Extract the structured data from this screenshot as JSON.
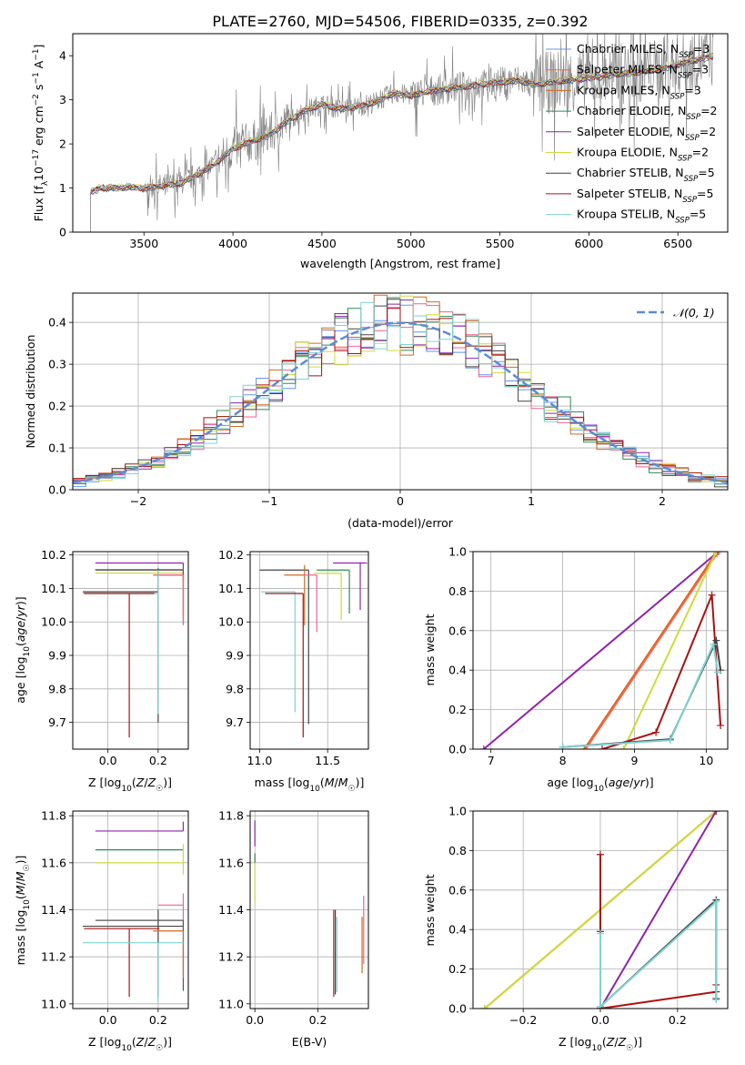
{
  "figure_title": "PLATE=2760, MJD=54506, FIBERID=0335, z=0.392",
  "colors": {
    "chabrier_miles": "#6495ed",
    "salpeter_miles": "#ff6347",
    "kroupa_miles": "#d2691e",
    "chabrier_elodie": "#2e8b57",
    "salpeter_elodie": "#8e24aa",
    "kroupa_elodie": "#cddc39",
    "chabrier_stelib": "#444444",
    "salpeter_stelib": "#aa1111",
    "kroupa_stelib": "#7fd3d3",
    "data": "#808080",
    "normal": "#5b8bd8",
    "pink": "#f06292",
    "dark": "#555555"
  },
  "chart_data": [
    {
      "id": "spectrum",
      "type": "line",
      "xlabel": "wavelength [Angstrom, rest frame]",
      "ylabel": "Flux [f_λ 10^-17 erg cm^-2 s^-1 A^-1]",
      "xlim": [
        3100,
        6780
      ],
      "ylim": [
        0,
        4.5
      ],
      "xticks": [
        3500,
        4000,
        4500,
        5000,
        5500,
        6000,
        6500
      ],
      "yticks": [
        0,
        1,
        2,
        3,
        4
      ],
      "legend_position": "top-right",
      "legend": [
        {
          "label": "Chabrier MILES, N",
          "sub": "SSP",
          "tail": "=3",
          "color_key": "chabrier_miles"
        },
        {
          "label": "Salpeter MILES, N",
          "sub": "SSP",
          "tail": "=3",
          "color_key": "salpeter_miles"
        },
        {
          "label": "Kroupa MILES, N",
          "sub": "SSP",
          "tail": "=3",
          "color_key": "kroupa_miles"
        },
        {
          "label": "Chabrier ELODIE, N",
          "sub": "SSP",
          "tail": "=2",
          "color_key": "chabrier_elodie"
        },
        {
          "label": "Salpeter ELODIE, N",
          "sub": "SSP",
          "tail": "=2",
          "color_key": "salpeter_elodie"
        },
        {
          "label": "Kroupa ELODIE, N",
          "sub": "SSP",
          "tail": "=2",
          "color_key": "kroupa_elodie"
        },
        {
          "label": "Chabrier STELIB, N",
          "sub": "SSP",
          "tail": "=5",
          "color_key": "chabrier_stelib"
        },
        {
          "label": "Salpeter STELIB, N",
          "sub": "SSP",
          "tail": "=5",
          "color_key": "salpeter_stelib"
        },
        {
          "label": "Kroupa STELIB, N",
          "sub": "SSP",
          "tail": "=5",
          "color_key": "kroupa_stelib"
        }
      ],
      "continuum": {
        "x": [
          3200,
          3250,
          3300,
          3400,
          3500,
          3600,
          3700,
          3800,
          3900,
          4000,
          4100,
          4200,
          4300,
          4400,
          4500,
          4600,
          4700,
          4800,
          4900,
          5000,
          5100,
          5200,
          5300,
          5400,
          5500,
          5600,
          5700,
          5800,
          5900,
          6000,
          6100,
          6200,
          6300,
          6400,
          6500,
          6600,
          6700
        ],
        "y": [
          0.9,
          1.0,
          1.0,
          1.02,
          1.0,
          1.05,
          1.1,
          1.3,
          1.55,
          1.9,
          2.05,
          2.2,
          2.5,
          2.75,
          2.9,
          2.8,
          2.85,
          2.95,
          3.15,
          3.1,
          3.2,
          3.25,
          3.3,
          3.35,
          3.4,
          3.45,
          3.35,
          3.4,
          3.45,
          3.5,
          3.55,
          3.6,
          3.65,
          3.7,
          3.8,
          3.9,
          4.0
        ]
      }
    },
    {
      "id": "residuals",
      "type": "line",
      "xlabel": "(data-model)/error",
      "ylabel": "Normed distribution",
      "xlim": [
        -2.5,
        2.5
      ],
      "ylim": [
        0,
        0.47
      ],
      "xticks": [
        -2,
        -1,
        0,
        1,
        2
      ],
      "yticks": [
        0.0,
        0.1,
        0.2,
        0.3,
        0.4
      ],
      "legend_position": "top-right",
      "legend": [
        {
          "label": "𝒩(0, 1)",
          "color_key": "normal"
        }
      ],
      "histogram_bin_width": 0.1
    },
    {
      "id": "age_vs_Z",
      "type": "scatter",
      "xlabel": "Z [log10(Z/Z☉)]",
      "ylabel": "age  [log10(age/yr)]",
      "xlim": [
        -0.14,
        0.32
      ],
      "ylim": [
        9.62,
        10.21
      ],
      "xticks": [
        0.0,
        0.2
      ],
      "yticks": [
        9.7,
        9.8,
        9.9,
        10.0,
        10.1,
        10.2
      ],
      "points": [
        {
          "x": 0.3,
          "y": 10.176,
          "xerr": [
            0.35,
            0.0
          ],
          "yerr": [
            0.02,
            0.0
          ],
          "color_key": "salpeter_elodie"
        },
        {
          "x": 0.3,
          "y": 10.156,
          "xerr": [
            0.35,
            0.0
          ],
          "yerr": [
            0.03,
            0.0
          ],
          "color_key": "chabrier_elodie"
        },
        {
          "x": 0.3,
          "y": 10.146,
          "xerr": [
            0.35,
            0.0
          ],
          "yerr": [
            0.03,
            0.0
          ],
          "color_key": "kroupa_elodie"
        },
        {
          "x": 0.3,
          "y": 10.155,
          "xerr": [
            0.35,
            0.0
          ],
          "yerr": [
            0.16,
            0.0
          ],
          "color_key": "dark"
        },
        {
          "x": 0.3,
          "y": 10.14,
          "xerr": [
            0.12,
            0.0
          ],
          "yerr": [
            0.12,
            0.0
          ],
          "color_key": "kroupa_miles"
        },
        {
          "x": 0.3,
          "y": 10.14,
          "xerr": [
            0.1,
            0.0
          ],
          "yerr": [
            0.15,
            0.0
          ],
          "color_key": "pink"
        },
        {
          "x": 0.2,
          "y": 10.09,
          "xerr": [
            0.3,
            0.0
          ],
          "yerr": [
            0.39,
            0.07
          ],
          "color_key": "chabrier_stelib"
        },
        {
          "x": 0.2,
          "y": 10.085,
          "xerr": [
            0.3,
            0.0
          ],
          "yerr": [
            0.36,
            0.07
          ],
          "color_key": "kroupa_stelib"
        },
        {
          "x": 0.085,
          "y": 10.085,
          "xerr": [
            0.18,
            0.1
          ],
          "yerr": [
            0.43,
            0.0
          ],
          "color_key": "salpeter_stelib"
        }
      ]
    },
    {
      "id": "age_vs_mass",
      "type": "scatter",
      "xlabel": "mass [log10(M/M☉)]",
      "ylabel": "",
      "xlim": [
        10.93,
        11.8
      ],
      "ylim": [
        9.62,
        10.21
      ],
      "xticks": [
        11.0,
        11.5
      ],
      "yticks": [
        9.7,
        9.8,
        9.9,
        10.0,
        10.1,
        10.2
      ],
      "points": [
        {
          "x": 11.74,
          "y": 10.176,
          "xerr": [
            0.2,
            0.05
          ],
          "yerr": [
            0.14,
            0.0
          ],
          "color_key": "salpeter_elodie"
        },
        {
          "x": 11.66,
          "y": 10.155,
          "xerr": [
            0.24,
            0.0
          ],
          "yerr": [
            0.13,
            0.0
          ],
          "color_key": "chabrier_elodie"
        },
        {
          "x": 11.6,
          "y": 10.145,
          "xerr": [
            0.2,
            0.0
          ],
          "yerr": [
            0.14,
            0.0
          ],
          "color_key": "kroupa_elodie"
        },
        {
          "x": 11.36,
          "y": 10.155,
          "xerr": [
            0.36,
            0.0
          ],
          "yerr": [
            0.46,
            0.0
          ],
          "color_key": "chabrier_stelib"
        },
        {
          "x": 11.33,
          "y": 10.14,
          "xerr": [
            0.15,
            0.0
          ],
          "yerr": [
            0.15,
            0.03
          ],
          "color_key": "kroupa_miles"
        },
        {
          "x": 11.42,
          "y": 10.14,
          "xerr": [
            0.1,
            0.0
          ],
          "yerr": [
            0.17,
            0.0
          ],
          "color_key": "pink"
        },
        {
          "x": 11.26,
          "y": 10.09,
          "xerr": [
            0.25,
            0.0
          ],
          "yerr": [
            0.36,
            0.0
          ],
          "color_key": "kroupa_stelib"
        },
        {
          "x": 11.32,
          "y": 10.085,
          "xerr": [
            0.28,
            0.0
          ],
          "yerr": [
            0.43,
            0.0
          ],
          "color_key": "salpeter_stelib"
        }
      ]
    },
    {
      "id": "weight_vs_age",
      "type": "line",
      "xlabel": "age  [log10(age/yr)]",
      "ylabel": "mass weight",
      "xlim": [
        6.75,
        10.3
      ],
      "ylim": [
        0,
        1.0
      ],
      "xticks": [
        7,
        8,
        9,
        10
      ],
      "yticks": [
        0.0,
        0.2,
        0.4,
        0.6,
        0.8,
        1.0
      ],
      "series": [
        {
          "color_key": "salpeter_elodie",
          "x": [
            6.9,
            10.17
          ],
          "y": [
            0.0,
            1.0
          ]
        },
        {
          "color_key": "kroupa_miles",
          "x": [
            8.3,
            10.15
          ],
          "y": [
            0.0,
            1.0
          ]
        },
        {
          "color_key": "salpeter_miles",
          "x": [
            8.32,
            10.15
          ],
          "y": [
            0.0,
            0.99
          ]
        },
        {
          "color_key": "kroupa_elodie",
          "x": [
            8.85,
            10.14
          ],
          "y": [
            0.0,
            1.0
          ]
        },
        {
          "color_key": "salpeter_stelib",
          "x": [
            8.55,
            9.3,
            10.08,
            10.2
          ],
          "y": [
            0.0,
            0.085,
            0.78,
            0.12
          ]
        },
        {
          "color_key": "chabrier_stelib",
          "x": [
            8.0,
            9.5,
            10.14,
            10.2
          ],
          "y": [
            0.01,
            0.05,
            0.55,
            0.4
          ]
        },
        {
          "color_key": "kroupa_stelib",
          "x": [
            8.0,
            9.5,
            10.1,
            10.16
          ],
          "y": [
            0.01,
            0.045,
            0.53,
            0.39
          ]
        }
      ]
    },
    {
      "id": "mass_vs_Z",
      "type": "scatter",
      "xlabel": "Z [log10(Z/Z☉)]",
      "ylabel": "mass [log10(M/M☉)]",
      "xlim": [
        -0.14,
        0.32
      ],
      "ylim": [
        10.98,
        11.82
      ],
      "xticks": [
        0.0,
        0.2
      ],
      "yticks": [
        11.0,
        11.2,
        11.4,
        11.6,
        11.8
      ],
      "points": [
        {
          "x": 0.3,
          "y": 11.735,
          "xerr": [
            0.35,
            0.0
          ],
          "yerr": [
            0.0,
            0.04
          ],
          "color_key": "salpeter_elodie"
        },
        {
          "x": 0.3,
          "y": 11.655,
          "xerr": [
            0.35,
            0.0
          ],
          "yerr": [
            0.0,
            0.0
          ],
          "color_key": "chabrier_elodie"
        },
        {
          "x": 0.3,
          "y": 11.6,
          "xerr": [
            0.35,
            0.0
          ],
          "yerr": [
            0.05,
            0.08
          ],
          "color_key": "kroupa_elodie"
        },
        {
          "x": 0.3,
          "y": 11.42,
          "xerr": [
            0.1,
            0.0
          ],
          "yerr": [
            0.08,
            0.05
          ],
          "color_key": "pink"
        },
        {
          "x": 0.3,
          "y": 11.355,
          "xerr": [
            0.35,
            0.0
          ],
          "yerr": [
            0.3,
            0.0
          ],
          "color_key": "dark"
        },
        {
          "x": 0.2,
          "y": 11.33,
          "xerr": [
            0.3,
            0.1
          ],
          "yerr": [
            0.3,
            0.07
          ],
          "color_key": "chabrier_stelib"
        },
        {
          "x": 0.3,
          "y": 11.31,
          "xerr": [
            0.12,
            0.0
          ],
          "yerr": [
            0.2,
            0.0
          ],
          "color_key": "kroupa_miles"
        },
        {
          "x": 0.085,
          "y": 11.32,
          "xerr": [
            0.18,
            0.12
          ],
          "yerr": [
            0.29,
            0.0
          ],
          "color_key": "salpeter_stelib"
        },
        {
          "x": 0.2,
          "y": 11.26,
          "xerr": [
            0.3,
            0.1
          ],
          "yerr": [
            0.25,
            0.0
          ],
          "color_key": "kroupa_stelib"
        }
      ]
    },
    {
      "id": "mass_vs_ebv",
      "type": "scatter",
      "xlabel": "E(B-V)",
      "ylabel": "",
      "xlim": [
        -0.015,
        0.36
      ],
      "ylim": [
        10.98,
        11.82
      ],
      "xticks": [
        0.0,
        0.2
      ],
      "yticks": [
        11.0,
        11.2,
        11.4,
        11.6,
        11.8
      ],
      "points": [
        {
          "x": 0.0,
          "y": 11.72,
          "xerr": [
            0.0,
            0.0
          ],
          "yerr": [
            0.05,
            0.06
          ],
          "color_key": "salpeter_elodie"
        },
        {
          "x": 0.0,
          "y": 11.6,
          "xerr": [
            0.0,
            0.0
          ],
          "yerr": [
            0.17,
            0.04
          ],
          "color_key": "kroupa_elodie"
        },
        {
          "x": 0.0,
          "y": 11.62,
          "xerr": [
            0.0,
            0.0
          ],
          "yerr": [
            0.02,
            0.02
          ],
          "color_key": "chabrier_elodie"
        },
        {
          "x": 0.25,
          "y": 11.3,
          "xerr": [
            0.0,
            0.0
          ],
          "yerr": [
            0.27,
            0.1
          ],
          "color_key": "chabrier_stelib"
        },
        {
          "x": 0.255,
          "y": 11.28,
          "xerr": [
            0.0,
            0.0
          ],
          "yerr": [
            0.24,
            0.12
          ],
          "color_key": "salpeter_stelib"
        },
        {
          "x": 0.26,
          "y": 11.25,
          "xerr": [
            0.0,
            0.0
          ],
          "yerr": [
            0.2,
            0.12
          ],
          "color_key": "kroupa_stelib"
        },
        {
          "x": 0.34,
          "y": 11.3,
          "xerr": [
            0.0,
            0.0
          ],
          "yerr": [
            0.17,
            0.07
          ],
          "color_key": "kroupa_miles"
        },
        {
          "x": 0.345,
          "y": 11.32,
          "xerr": [
            0.0,
            0.0
          ],
          "yerr": [
            0.15,
            0.14
          ],
          "color_key": "pink"
        }
      ]
    },
    {
      "id": "weight_vs_Z",
      "type": "line",
      "xlabel": "Z [log10(Z/Z☉)]",
      "ylabel": "mass weight",
      "xlim": [
        -0.33,
        0.33
      ],
      "ylim": [
        0,
        1.0
      ],
      "xticks": [
        -0.2,
        0.0,
        0.2
      ],
      "yticks": [
        0.0,
        0.2,
        0.4,
        0.6,
        0.8,
        1.0
      ],
      "series": [
        {
          "color_key": "kroupa_miles",
          "x": [
            -0.3,
            0.3
          ],
          "y": [
            0.0,
            1.0
          ]
        },
        {
          "color_key": "kroupa_elodie",
          "x": [
            -0.3,
            0.3
          ],
          "y": [
            0.0,
            1.0
          ]
        },
        {
          "color_key": "salpeter_elodie",
          "x": [
            0.0,
            0.3
          ],
          "y": [
            0.0,
            1.0
          ]
        },
        {
          "color_key": "salpeter_stelib",
          "x": [
            0.0,
            0.0,
            0.0,
            0.3,
            0.3
          ],
          "y": [
            0.78,
            0.0,
            0.0,
            0.085,
            0.12
          ]
        },
        {
          "color_key": "chabrier_stelib",
          "x": [
            0.0,
            0.0,
            0.3,
            0.3
          ],
          "y": [
            0.39,
            0.01,
            0.55,
            0.05
          ]
        },
        {
          "color_key": "kroupa_stelib",
          "x": [
            0.0,
            0.0,
            0.3,
            0.3
          ],
          "y": [
            0.38,
            0.01,
            0.54,
            0.045
          ]
        }
      ]
    }
  ]
}
